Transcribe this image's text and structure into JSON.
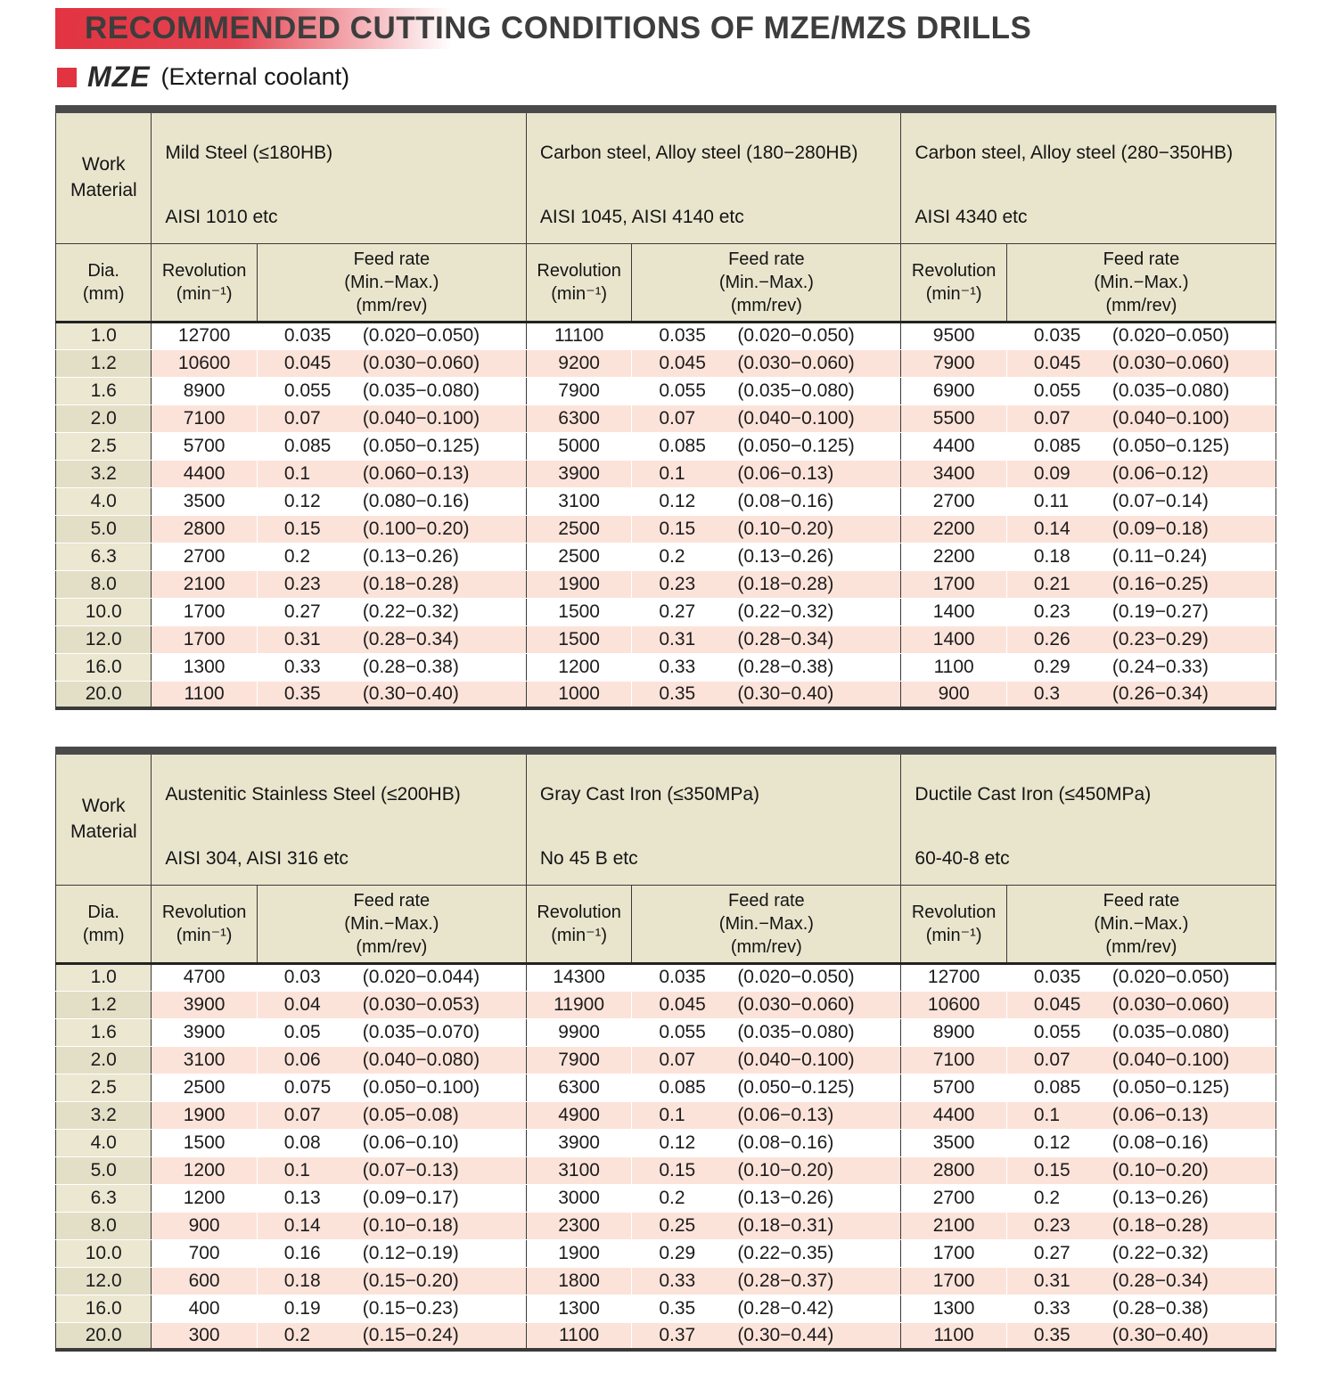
{
  "page": {
    "title": "RECOMMENDED CUTTING CONDITIONS OF MZE/MZS DRILLS",
    "series": "MZE",
    "series_note": "(External coolant)"
  },
  "headers": {
    "work_material": "Work Material",
    "dia": "Dia.",
    "dia_unit": "(mm)",
    "revolution": "Revolution",
    "revolution_unit": "(min⁻¹)",
    "feed_rate": "Feed rate",
    "feed_minmax": "(Min.−Max.)",
    "feed_unit": "(mm/rev)"
  },
  "tables": [
    {
      "materials": [
        {
          "name": "Mild Steel (≤180HB)",
          "spec": "AISI 1010 etc"
        },
        {
          "name": "Carbon steel, Alloy steel (180−280HB)",
          "spec": "AISI 1045, AISI 4140 etc"
        },
        {
          "name": "Carbon steel, Alloy steel (280−350HB)",
          "spec": "AISI 4340 etc"
        }
      ],
      "rows": [
        {
          "dia": "1.0",
          "data": [
            [
              "12700",
              "0.035",
              "(0.020−0.050)"
            ],
            [
              "11100",
              "0.035",
              "(0.020−0.050)"
            ],
            [
              "9500",
              "0.035",
              "(0.020−0.050)"
            ]
          ]
        },
        {
          "dia": "1.2",
          "data": [
            [
              "10600",
              "0.045",
              "(0.030−0.060)"
            ],
            [
              "9200",
              "0.045",
              "(0.030−0.060)"
            ],
            [
              "7900",
              "0.045",
              "(0.030−0.060)"
            ]
          ]
        },
        {
          "dia": "1.6",
          "data": [
            [
              "8900",
              "0.055",
              "(0.035−0.080)"
            ],
            [
              "7900",
              "0.055",
              "(0.035−0.080)"
            ],
            [
              "6900",
              "0.055",
              "(0.035−0.080)"
            ]
          ]
        },
        {
          "dia": "2.0",
          "data": [
            [
              "7100",
              "0.07",
              "(0.040−0.100)"
            ],
            [
              "6300",
              "0.07",
              "(0.040−0.100)"
            ],
            [
              "5500",
              "0.07",
              "(0.040−0.100)"
            ]
          ]
        },
        {
          "dia": "2.5",
          "data": [
            [
              "5700",
              "0.085",
              "(0.050−0.125)"
            ],
            [
              "5000",
              "0.085",
              "(0.050−0.125)"
            ],
            [
              "4400",
              "0.085",
              "(0.050−0.125)"
            ]
          ]
        },
        {
          "dia": "3.2",
          "data": [
            [
              "4400",
              "0.1",
              "(0.060−0.13)"
            ],
            [
              "3900",
              "0.1",
              "(0.06−0.13)"
            ],
            [
              "3400",
              "0.09",
              "(0.06−0.12)"
            ]
          ]
        },
        {
          "dia": "4.0",
          "data": [
            [
              "3500",
              "0.12",
              "(0.080−0.16)"
            ],
            [
              "3100",
              "0.12",
              "(0.08−0.16)"
            ],
            [
              "2700",
              "0.11",
              "(0.07−0.14)"
            ]
          ]
        },
        {
          "dia": "5.0",
          "data": [
            [
              "2800",
              "0.15",
              "(0.100−0.20)"
            ],
            [
              "2500",
              "0.15",
              "(0.10−0.20)"
            ],
            [
              "2200",
              "0.14",
              "(0.09−0.18)"
            ]
          ]
        },
        {
          "dia": "6.3",
          "data": [
            [
              "2700",
              "0.2",
              "(0.13−0.26)"
            ],
            [
              "2500",
              "0.2",
              "(0.13−0.26)"
            ],
            [
              "2200",
              "0.18",
              "(0.11−0.24)"
            ]
          ]
        },
        {
          "dia": "8.0",
          "data": [
            [
              "2100",
              "0.23",
              "(0.18−0.28)"
            ],
            [
              "1900",
              "0.23",
              "(0.18−0.28)"
            ],
            [
              "1700",
              "0.21",
              "(0.16−0.25)"
            ]
          ]
        },
        {
          "dia": "10.0",
          "data": [
            [
              "1700",
              "0.27",
              "(0.22−0.32)"
            ],
            [
              "1500",
              "0.27",
              "(0.22−0.32)"
            ],
            [
              "1400",
              "0.23",
              "(0.19−0.27)"
            ]
          ]
        },
        {
          "dia": "12.0",
          "data": [
            [
              "1700",
              "0.31",
              "(0.28−0.34)"
            ],
            [
              "1500",
              "0.31",
              "(0.28−0.34)"
            ],
            [
              "1400",
              "0.26",
              "(0.23−0.29)"
            ]
          ]
        },
        {
          "dia": "16.0",
          "data": [
            [
              "1300",
              "0.33",
              "(0.28−0.38)"
            ],
            [
              "1200",
              "0.33",
              "(0.28−0.38)"
            ],
            [
              "1100",
              "0.29",
              "(0.24−0.33)"
            ]
          ]
        },
        {
          "dia": "20.0",
          "data": [
            [
              "1100",
              "0.35",
              "(0.30−0.40)"
            ],
            [
              "1000",
              "0.35",
              "(0.30−0.40)"
            ],
            [
              "900",
              "0.3",
              "(0.26−0.34)"
            ]
          ]
        }
      ]
    },
    {
      "materials": [
        {
          "name": "Austenitic Stainless Steel (≤200HB)",
          "spec": "AISI 304, AISI 316 etc"
        },
        {
          "name": "Gray Cast Iron (≤350MPa)",
          "spec": "No 45 B etc"
        },
        {
          "name": "Ductile Cast Iron (≤450MPa)",
          "spec": "60-40-8 etc"
        }
      ],
      "rows": [
        {
          "dia": "1.0",
          "data": [
            [
              "4700",
              "0.03",
              "(0.020−0.044)"
            ],
            [
              "14300",
              "0.035",
              "(0.020−0.050)"
            ],
            [
              "12700",
              "0.035",
              "(0.020−0.050)"
            ]
          ]
        },
        {
          "dia": "1.2",
          "data": [
            [
              "3900",
              "0.04",
              "(0.030−0.053)"
            ],
            [
              "11900",
              "0.045",
              "(0.030−0.060)"
            ],
            [
              "10600",
              "0.045",
              "(0.030−0.060)"
            ]
          ]
        },
        {
          "dia": "1.6",
          "data": [
            [
              "3900",
              "0.05",
              "(0.035−0.070)"
            ],
            [
              "9900",
              "0.055",
              "(0.035−0.080)"
            ],
            [
              "8900",
              "0.055",
              "(0.035−0.080)"
            ]
          ]
        },
        {
          "dia": "2.0",
          "data": [
            [
              "3100",
              "0.06",
              "(0.040−0.080)"
            ],
            [
              "7900",
              "0.07",
              "(0.040−0.100)"
            ],
            [
              "7100",
              "0.07",
              "(0.040−0.100)"
            ]
          ]
        },
        {
          "dia": "2.5",
          "data": [
            [
              "2500",
              "0.075",
              "(0.050−0.100)"
            ],
            [
              "6300",
              "0.085",
              "(0.050−0.125)"
            ],
            [
              "5700",
              "0.085",
              "(0.050−0.125)"
            ]
          ]
        },
        {
          "dia": "3.2",
          "data": [
            [
              "1900",
              "0.07",
              "(0.05−0.08)"
            ],
            [
              "4900",
              "0.1",
              "(0.06−0.13)"
            ],
            [
              "4400",
              "0.1",
              "(0.06−0.13)"
            ]
          ]
        },
        {
          "dia": "4.0",
          "data": [
            [
              "1500",
              "0.08",
              "(0.06−0.10)"
            ],
            [
              "3900",
              "0.12",
              "(0.08−0.16)"
            ],
            [
              "3500",
              "0.12",
              "(0.08−0.16)"
            ]
          ]
        },
        {
          "dia": "5.0",
          "data": [
            [
              "1200",
              "0.1",
              "(0.07−0.13)"
            ],
            [
              "3100",
              "0.15",
              "(0.10−0.20)"
            ],
            [
              "2800",
              "0.15",
              "(0.10−0.20)"
            ]
          ]
        },
        {
          "dia": "6.3",
          "data": [
            [
              "1200",
              "0.13",
              "(0.09−0.17)"
            ],
            [
              "3000",
              "0.2",
              "(0.13−0.26)"
            ],
            [
              "2700",
              "0.2",
              "(0.13−0.26)"
            ]
          ]
        },
        {
          "dia": "8.0",
          "data": [
            [
              "900",
              "0.14",
              "(0.10−0.18)"
            ],
            [
              "2300",
              "0.25",
              "(0.18−0.31)"
            ],
            [
              "2100",
              "0.23",
              "(0.18−0.28)"
            ]
          ]
        },
        {
          "dia": "10.0",
          "data": [
            [
              "700",
              "0.16",
              "(0.12−0.19)"
            ],
            [
              "1900",
              "0.29",
              "(0.22−0.35)"
            ],
            [
              "1700",
              "0.27",
              "(0.22−0.32)"
            ]
          ]
        },
        {
          "dia": "12.0",
          "data": [
            [
              "600",
              "0.18",
              "(0.15−0.20)"
            ],
            [
              "1800",
              "0.33",
              "(0.28−0.37)"
            ],
            [
              "1700",
              "0.31",
              "(0.28−0.34)"
            ]
          ]
        },
        {
          "dia": "16.0",
          "data": [
            [
              "400",
              "0.19",
              "(0.15−0.23)"
            ],
            [
              "1300",
              "0.35",
              "(0.28−0.42)"
            ],
            [
              "1300",
              "0.33",
              "(0.28−0.38)"
            ]
          ]
        },
        {
          "dia": "20.0",
          "data": [
            [
              "300",
              "0.2",
              "(0.15−0.24)"
            ],
            [
              "1100",
              "0.37",
              "(0.30−0.44)"
            ],
            [
              "1100",
              "0.35",
              "(0.30−0.40)"
            ]
          ]
        }
      ]
    }
  ]
}
